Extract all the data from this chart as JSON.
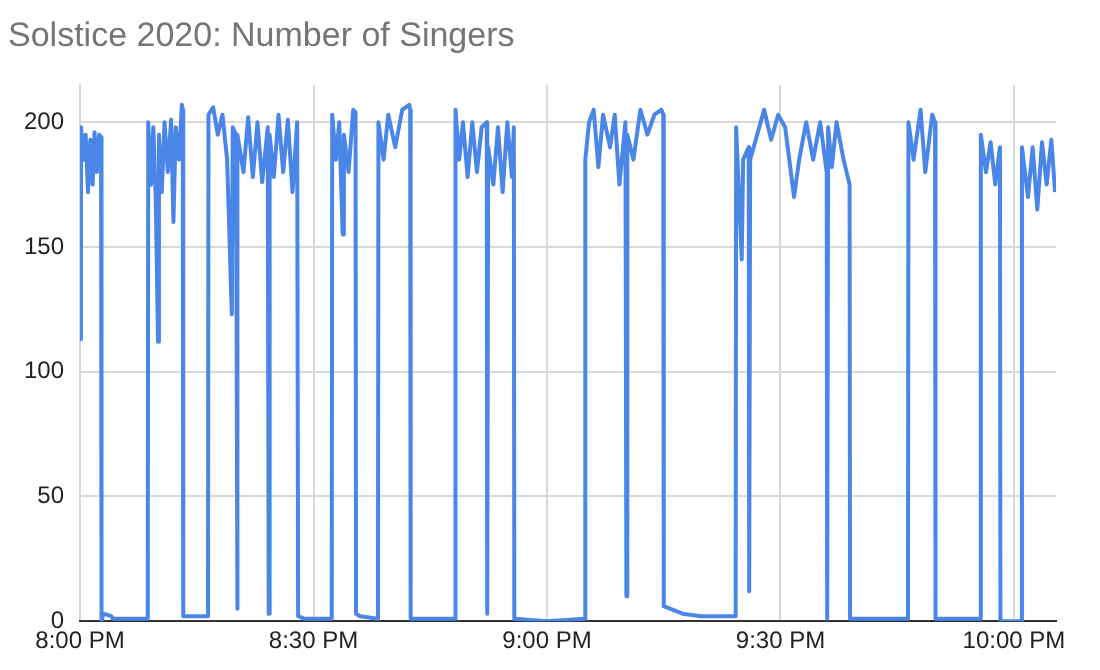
{
  "chart_data": {
    "type": "line",
    "title": "Solstice 2020: Number of Singers",
    "x": [
      20.0,
      20.002,
      20.008,
      20.012,
      20.017,
      20.022,
      20.027,
      20.031,
      20.036,
      20.041,
      20.045,
      20.046,
      20.05,
      20.067,
      20.07,
      20.145,
      20.146,
      20.152,
      20.157,
      20.162,
      20.167,
      20.169,
      20.175,
      20.181,
      20.188,
      20.195,
      20.2,
      20.205,
      20.212,
      20.218,
      20.22,
      20.221,
      20.274,
      20.275,
      20.285,
      20.295,
      20.305,
      20.315,
      20.325,
      20.327,
      20.334,
      20.336,
      20.338,
      20.35,
      20.36,
      20.37,
      20.38,
      20.39,
      20.402,
      20.404,
      20.406,
      20.415,
      20.425,
      20.435,
      20.445,
      20.455,
      20.465,
      20.467,
      20.48,
      20.539,
      20.54,
      20.548,
      20.555,
      20.5625,
      20.565,
      20.575,
      20.585,
      20.59,
      20.591,
      20.6,
      20.638,
      20.639,
      20.65,
      20.66,
      20.675,
      20.69,
      20.705,
      20.707,
      20.708,
      20.803,
      20.804,
      20.812,
      20.82,
      20.83,
      20.84,
      20.85,
      20.86,
      20.871,
      20.872,
      20.874,
      20.885,
      20.895,
      20.905,
      20.915,
      20.925,
      20.929,
      20.93,
      21.0,
      21.081,
      21.082,
      21.09,
      21.1,
      21.11,
      21.12,
      21.135,
      21.145,
      21.155,
      21.168,
      21.17,
      21.172,
      21.185,
      21.2,
      21.215,
      21.23,
      21.245,
      21.249,
      21.25,
      21.29,
      21.33,
      21.404,
      21.405,
      21.417,
      21.42,
      21.432,
      21.433,
      21.435,
      21.45,
      21.465,
      21.48,
      21.495,
      21.51,
      21.529,
      21.54,
      21.555,
      21.57,
      21.585,
      21.599,
      21.6,
      21.602,
      21.61,
      21.62,
      21.635,
      21.648,
      21.649,
      21.7,
      21.773,
      21.774,
      21.785,
      21.8,
      21.81,
      21.825,
      21.831,
      21.832,
      21.928,
      21.929,
      21.94,
      21.95,
      21.96,
      21.97,
      21.971,
      22.016,
      22.017,
      22.03,
      22.04,
      22.05,
      22.06,
      22.07,
      22.08,
      22.088
    ],
    "series": [
      {
        "color": "#4a86e8",
        "values": [
          113,
          198,
          185,
          195,
          172,
          193,
          175,
          196,
          180,
          195,
          194,
          0,
          3,
          2,
          1,
          1,
          200,
          175,
          198,
          170,
          112,
          195,
          172,
          200,
          180,
          201,
          160,
          198,
          185,
          207,
          205,
          2,
          2,
          203,
          206,
          195,
          203,
          185,
          123,
          198,
          195,
          5,
          195,
          180,
          202,
          178,
          200,
          176,
          198,
          3,
          195,
          178,
          203,
          180,
          201,
          172,
          200,
          2,
          1,
          1,
          203,
          185,
          200,
          155,
          195,
          180,
          205,
          204,
          3,
          2,
          1,
          200,
          185,
          203,
          190,
          205,
          207,
          205,
          1,
          1,
          205,
          185,
          200,
          178,
          200,
          180,
          198,
          200,
          3,
          190,
          175,
          198,
          172,
          200,
          178,
          198,
          1,
          0,
          1,
          185,
          200,
          205,
          182,
          203,
          190,
          203,
          175,
          200,
          10,
          195,
          185,
          205,
          195,
          203,
          205,
          203,
          6,
          3,
          2,
          2,
          198,
          145,
          185,
          190,
          12,
          185,
          195,
          205,
          193,
          203,
          198,
          170,
          185,
          200,
          185,
          200,
          180,
          1,
          198,
          182,
          200,
          185,
          175,
          1,
          1,
          1,
          200,
          185,
          205,
          180,
          203,
          200,
          1,
          1,
          195,
          180,
          192,
          175,
          190,
          0,
          0,
          190,
          170,
          190,
          165,
          192,
          175,
          193,
          172
        ]
      }
    ],
    "xlim": [
      20,
      22.09
    ],
    "xticks": [
      {
        "value": 20,
        "label": "8:00 PM"
      },
      {
        "value": 20.5,
        "label": "8:30 PM"
      },
      {
        "value": 21,
        "label": "9:00 PM"
      },
      {
        "value": 21.5,
        "label": "9:30 PM"
      },
      {
        "value": 22,
        "label": "10:00 PM"
      }
    ],
    "ylim": [
      0,
      215
    ],
    "yticks": [
      0,
      50,
      100,
      150,
      200
    ],
    "grid": true,
    "marker": "none",
    "line_style": "solid"
  }
}
